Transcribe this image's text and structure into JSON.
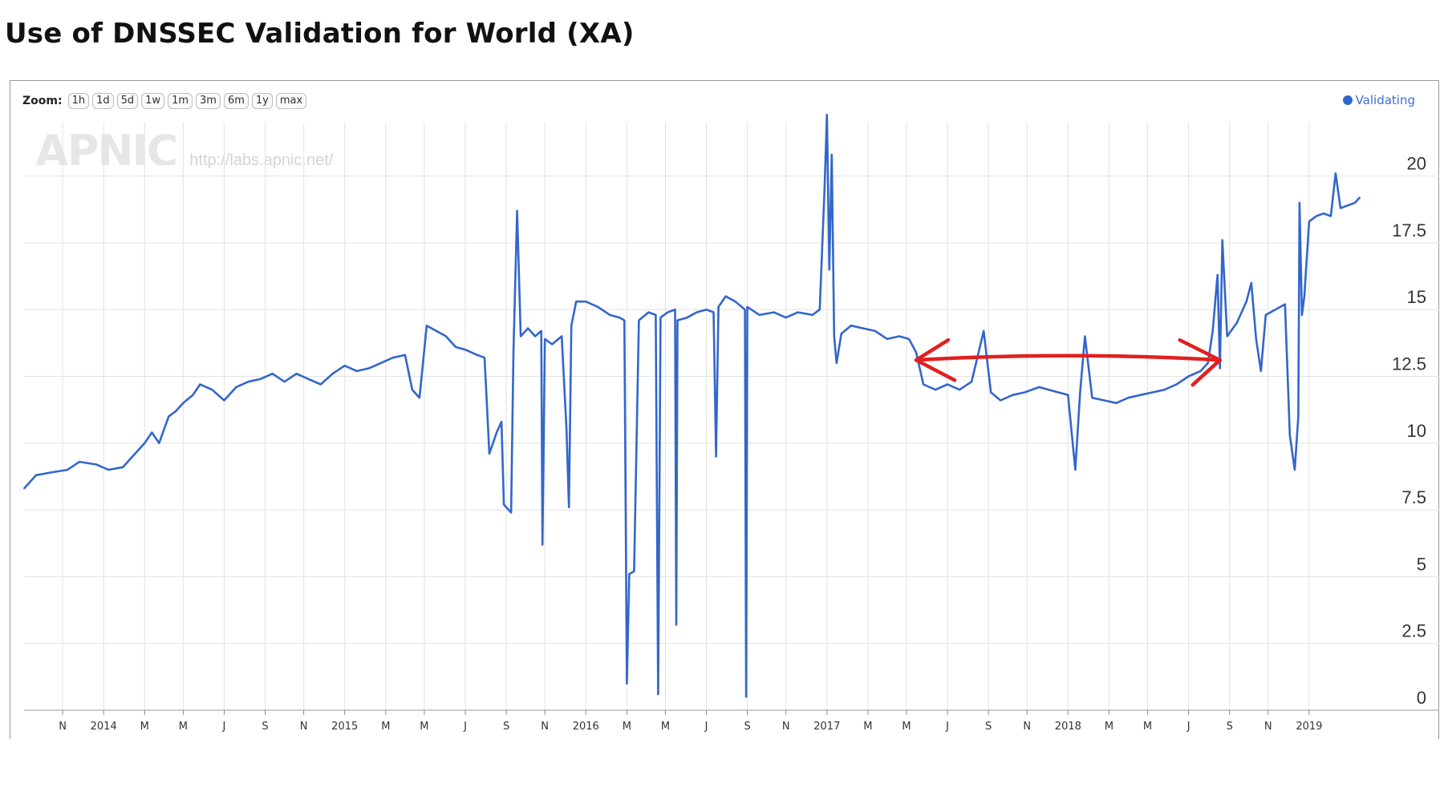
{
  "title": "Use of DNSSEC Validation for World (XA)",
  "zoom": {
    "label": "Zoom:",
    "buttons": [
      "1h",
      "1d",
      "5d",
      "1w",
      "1m",
      "3m",
      "6m",
      "1y",
      "max"
    ]
  },
  "legend": {
    "label": "Validating",
    "color": "#3366cc"
  },
  "watermark": {
    "logo": "APNIC",
    "url": "http://labs.apnic.net/"
  },
  "annotation": {
    "type": "double-headed-arrow",
    "color": "#e02020",
    "from": 2017.37,
    "to": 2018.63,
    "level": 13.2
  },
  "chart_data": {
    "type": "line",
    "title": "Use of DNSSEC Validation for World (XA)",
    "xlabel": "",
    "ylabel": "",
    "ylim": [
      0,
      22
    ],
    "xlim": [
      2013.67,
      2019.21
    ],
    "y_ticks": [
      "0",
      "2.5",
      "5",
      "7.5",
      "10",
      "12.5",
      "15",
      "17.5",
      "20"
    ],
    "x_ticks": [
      {
        "label": "N",
        "x": 2013.83
      },
      {
        "label": "2014",
        "x": 2014.0
      },
      {
        "label": "M",
        "x": 2014.17
      },
      {
        "label": "M",
        "x": 2014.33
      },
      {
        "label": "J",
        "x": 2014.5
      },
      {
        "label": "S",
        "x": 2014.67
      },
      {
        "label": "N",
        "x": 2014.83
      },
      {
        "label": "2015",
        "x": 2015.0
      },
      {
        "label": "M",
        "x": 2015.17
      },
      {
        "label": "M",
        "x": 2015.33
      },
      {
        "label": "J",
        "x": 2015.5
      },
      {
        "label": "S",
        "x": 2015.67
      },
      {
        "label": "N",
        "x": 2015.83
      },
      {
        "label": "2016",
        "x": 2016.0
      },
      {
        "label": "M",
        "x": 2016.17
      },
      {
        "label": "M",
        "x": 2016.33
      },
      {
        "label": "J",
        "x": 2016.5
      },
      {
        "label": "S",
        "x": 2016.67
      },
      {
        "label": "N",
        "x": 2016.83
      },
      {
        "label": "2017",
        "x": 2017.0
      },
      {
        "label": "M",
        "x": 2017.17
      },
      {
        "label": "M",
        "x": 2017.33
      },
      {
        "label": "J",
        "x": 2017.5
      },
      {
        "label": "S",
        "x": 2017.67
      },
      {
        "label": "N",
        "x": 2017.83
      },
      {
        "label": "2018",
        "x": 2018.0
      },
      {
        "label": "M",
        "x": 2018.17
      },
      {
        "label": "M",
        "x": 2018.33
      },
      {
        "label": "J",
        "x": 2018.5
      },
      {
        "label": "S",
        "x": 2018.67
      },
      {
        "label": "N",
        "x": 2018.83
      },
      {
        "label": "2019",
        "x": 2019.0
      }
    ],
    "grid": true,
    "legend_position": "top-right",
    "series": [
      {
        "name": "Validating",
        "color": "#3366cc",
        "points": [
          [
            2013.67,
            8.3
          ],
          [
            2013.72,
            8.8
          ],
          [
            2013.78,
            8.9
          ],
          [
            2013.85,
            9.0
          ],
          [
            2013.9,
            9.3
          ],
          [
            2013.97,
            9.2
          ],
          [
            2014.02,
            9.0
          ],
          [
            2014.08,
            9.1
          ],
          [
            2014.12,
            9.5
          ],
          [
            2014.17,
            10.0
          ],
          [
            2014.2,
            10.4
          ],
          [
            2014.23,
            10.0
          ],
          [
            2014.27,
            11.0
          ],
          [
            2014.3,
            11.2
          ],
          [
            2014.33,
            11.5
          ],
          [
            2014.37,
            11.8
          ],
          [
            2014.4,
            12.2
          ],
          [
            2014.45,
            12.0
          ],
          [
            2014.5,
            11.6
          ],
          [
            2014.55,
            12.1
          ],
          [
            2014.6,
            12.3
          ],
          [
            2014.65,
            12.4
          ],
          [
            2014.7,
            12.6
          ],
          [
            2014.75,
            12.3
          ],
          [
            2014.8,
            12.6
          ],
          [
            2014.85,
            12.4
          ],
          [
            2014.9,
            12.2
          ],
          [
            2014.95,
            12.6
          ],
          [
            2015.0,
            12.9
          ],
          [
            2015.05,
            12.7
          ],
          [
            2015.1,
            12.8
          ],
          [
            2015.15,
            13.0
          ],
          [
            2015.2,
            13.2
          ],
          [
            2015.25,
            13.3
          ],
          [
            2015.28,
            12.0
          ],
          [
            2015.31,
            11.7
          ],
          [
            2015.34,
            14.4
          ],
          [
            2015.38,
            14.2
          ],
          [
            2015.42,
            14.0
          ],
          [
            2015.46,
            13.6
          ],
          [
            2015.5,
            13.5
          ],
          [
            2015.55,
            13.3
          ],
          [
            2015.58,
            13.2
          ],
          [
            2015.6,
            9.6
          ],
          [
            2015.63,
            10.4
          ],
          [
            2015.65,
            10.8
          ],
          [
            2015.66,
            7.7
          ],
          [
            2015.69,
            7.4
          ],
          [
            2015.7,
            13.5
          ],
          [
            2015.715,
            18.7
          ],
          [
            2015.73,
            14.0
          ],
          [
            2015.76,
            14.3
          ],
          [
            2015.79,
            14.0
          ],
          [
            2015.815,
            14.2
          ],
          [
            2015.82,
            6.2
          ],
          [
            2015.83,
            13.9
          ],
          [
            2015.86,
            13.7
          ],
          [
            2015.9,
            14.0
          ],
          [
            2015.92,
            10.5
          ],
          [
            2015.93,
            7.6
          ],
          [
            2015.94,
            14.4
          ],
          [
            2015.96,
            15.3
          ],
          [
            2016.0,
            15.3
          ],
          [
            2016.05,
            15.1
          ],
          [
            2016.1,
            14.8
          ],
          [
            2016.14,
            14.7
          ],
          [
            2016.16,
            14.6
          ],
          [
            2016.17,
            1.0
          ],
          [
            2016.18,
            5.1
          ],
          [
            2016.2,
            5.2
          ],
          [
            2016.22,
            14.6
          ],
          [
            2016.26,
            14.9
          ],
          [
            2016.29,
            14.8
          ],
          [
            2016.3,
            0.6
          ],
          [
            2016.31,
            14.7
          ],
          [
            2016.34,
            14.9
          ],
          [
            2016.37,
            15.0
          ],
          [
            2016.375,
            3.2
          ],
          [
            2016.38,
            14.6
          ],
          [
            2016.42,
            14.7
          ],
          [
            2016.46,
            14.9
          ],
          [
            2016.5,
            15.0
          ],
          [
            2016.53,
            14.9
          ],
          [
            2016.54,
            9.5
          ],
          [
            2016.55,
            15.1
          ],
          [
            2016.58,
            15.5
          ],
          [
            2016.62,
            15.3
          ],
          [
            2016.66,
            15.0
          ],
          [
            2016.665,
            0.5
          ],
          [
            2016.67,
            15.1
          ],
          [
            2016.72,
            14.8
          ],
          [
            2016.78,
            14.9
          ],
          [
            2016.83,
            14.7
          ],
          [
            2016.88,
            14.9
          ],
          [
            2016.94,
            14.8
          ],
          [
            2016.97,
            15.0
          ],
          [
            2016.99,
            19.5
          ],
          [
            2017.0,
            22.3
          ],
          [
            2017.01,
            16.5
          ],
          [
            2017.02,
            20.8
          ],
          [
            2017.03,
            14.0
          ],
          [
            2017.04,
            13.0
          ],
          [
            2017.06,
            14.1
          ],
          [
            2017.1,
            14.4
          ],
          [
            2017.15,
            14.3
          ],
          [
            2017.2,
            14.2
          ],
          [
            2017.25,
            13.9
          ],
          [
            2017.3,
            14.0
          ],
          [
            2017.34,
            13.9
          ],
          [
            2017.37,
            13.4
          ],
          [
            2017.4,
            12.2
          ],
          [
            2017.45,
            12.0
          ],
          [
            2017.5,
            12.2
          ],
          [
            2017.55,
            12.0
          ],
          [
            2017.6,
            12.3
          ],
          [
            2017.65,
            14.2
          ],
          [
            2017.68,
            11.9
          ],
          [
            2017.72,
            11.6
          ],
          [
            2017.77,
            11.8
          ],
          [
            2017.82,
            11.9
          ],
          [
            2017.88,
            12.1
          ],
          [
            2017.92,
            12.0
          ],
          [
            2017.96,
            11.9
          ],
          [
            2018.0,
            11.8
          ],
          [
            2018.03,
            9.0
          ],
          [
            2018.05,
            11.9
          ],
          [
            2018.07,
            14.0
          ],
          [
            2018.1,
            11.7
          ],
          [
            2018.15,
            11.6
          ],
          [
            2018.2,
            11.5
          ],
          [
            2018.25,
            11.7
          ],
          [
            2018.3,
            11.8
          ],
          [
            2018.35,
            11.9
          ],
          [
            2018.4,
            12.0
          ],
          [
            2018.45,
            12.2
          ],
          [
            2018.5,
            12.5
          ],
          [
            2018.55,
            12.7
          ],
          [
            2018.58,
            13.0
          ],
          [
            2018.6,
            14.2
          ],
          [
            2018.62,
            16.3
          ],
          [
            2018.63,
            12.8
          ],
          [
            2018.64,
            17.6
          ],
          [
            2018.66,
            14.0
          ],
          [
            2018.7,
            14.5
          ],
          [
            2018.74,
            15.3
          ],
          [
            2018.76,
            16.0
          ],
          [
            2018.78,
            13.9
          ],
          [
            2018.8,
            12.7
          ],
          [
            2018.82,
            14.8
          ],
          [
            2018.86,
            15.0
          ],
          [
            2018.9,
            15.2
          ],
          [
            2018.92,
            10.3
          ],
          [
            2018.94,
            9.0
          ],
          [
            2018.955,
            11.0
          ],
          [
            2018.96,
            19.0
          ],
          [
            2018.97,
            14.8
          ],
          [
            2018.98,
            15.5
          ],
          [
            2019.0,
            18.3
          ],
          [
            2019.03,
            18.5
          ],
          [
            2019.06,
            18.6
          ],
          [
            2019.09,
            18.5
          ],
          [
            2019.11,
            20.1
          ],
          [
            2019.13,
            18.8
          ],
          [
            2019.16,
            18.9
          ],
          [
            2019.19,
            19.0
          ],
          [
            2019.21,
            19.2
          ]
        ]
      }
    ]
  }
}
